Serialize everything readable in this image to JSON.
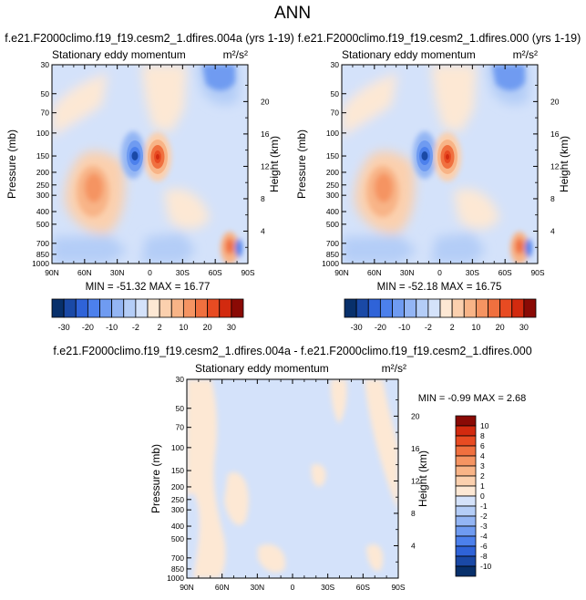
{
  "figure": {
    "title": "ANN",
    "colors": {
      "neg": [
        "#08306b",
        "#1a49a6",
        "#2f63d8",
        "#4c80ec",
        "#6f9bf1",
        "#93b5f4",
        "#b4cdf7",
        "#d4e2fa"
      ],
      "pos": [
        "#fde8d4",
        "#fbd0ae",
        "#f8b487",
        "#f59462",
        "#f0703f",
        "#e84b22",
        "#d22a0f",
        "#8a0a05"
      ]
    }
  },
  "chart_data": [
    {
      "type": "heatmap",
      "panel_title": "f.e21.F2000climo.f19_f19.cesm2_1.dfires.004a (yrs 1-19)",
      "subtitle": "Stationary eddy momentum",
      "units": "m²/s²",
      "xlabel": "",
      "ylabel": "Pressure (mb)",
      "ylabel_right": "Height (km)",
      "x_ticks": [
        "90N",
        "60N",
        "30N",
        "0",
        "30S",
        "60S",
        "90S"
      ],
      "y_ticks": [
        "30",
        "50",
        "70",
        "100",
        "150",
        "200",
        "250",
        "300",
        "400",
        "500",
        "700",
        "850",
        "1000"
      ],
      "height_ticks": [
        "20",
        "16",
        "12",
        "8",
        "4"
      ],
      "stats": "MIN = -51.32   MAX = 16.77",
      "min": -51.32,
      "max": 16.77,
      "levels": [
        "-30",
        "-20",
        "-10",
        "-2",
        "2",
        "10",
        "20",
        "30"
      ],
      "features": [
        {
          "lat": -8,
          "p": 150,
          "value": 16.77
        },
        {
          "lat": 5,
          "p": 150,
          "value": -51.32
        },
        {
          "lat": 38,
          "p": 250,
          "value": 12
        },
        {
          "lat": -35,
          "p": 220,
          "value": 6
        },
        {
          "lat": -80,
          "p": 750,
          "value": 15
        },
        {
          "lat": -72,
          "p": 45,
          "value": -12
        },
        {
          "lat": 15,
          "p": 400,
          "value": -4
        }
      ]
    },
    {
      "type": "heatmap",
      "panel_title": "f.e21.F2000climo.f19_f19.cesm2_1.dfires.000 (yrs 1-19)",
      "subtitle": "Stationary eddy momentum",
      "units": "m²/s²",
      "xlabel": "",
      "ylabel": "Pressure (mb)",
      "ylabel_right": "Height (km)",
      "x_ticks": [
        "90N",
        "60N",
        "30N",
        "0",
        "30S",
        "60S",
        "90S"
      ],
      "y_ticks": [
        "30",
        "50",
        "70",
        "100",
        "150",
        "200",
        "250",
        "300",
        "400",
        "500",
        "700",
        "850",
        "1000"
      ],
      "height_ticks": [
        "20",
        "16",
        "12",
        "8",
        "4"
      ],
      "stats": "MIN = -52.18   MAX = 16.75",
      "min": -52.18,
      "max": 16.75,
      "levels": [
        "-30",
        "-20",
        "-10",
        "-2",
        "2",
        "10",
        "20",
        "30"
      ],
      "features": [
        {
          "lat": -8,
          "p": 150,
          "value": 16.75
        },
        {
          "lat": 5,
          "p": 150,
          "value": -52.18
        },
        {
          "lat": 38,
          "p": 250,
          "value": 12
        },
        {
          "lat": -35,
          "p": 220,
          "value": 6
        },
        {
          "lat": -80,
          "p": 750,
          "value": 15
        },
        {
          "lat": -72,
          "p": 45,
          "value": -12
        },
        {
          "lat": 15,
          "p": 400,
          "value": -4
        }
      ]
    },
    {
      "type": "heatmap",
      "panel_title": "f.e21.F2000climo.f19_f19.cesm2_1.dfires.004a - f.e21.F2000climo.f19_f19.cesm2_1.dfires.000",
      "subtitle": "Stationary eddy momentum",
      "units": "m²/s²",
      "xlabel": "",
      "ylabel": "Pressure (mb)",
      "ylabel_right": "Height (km)",
      "x_ticks": [
        "90N",
        "60N",
        "30N",
        "0",
        "30S",
        "60S",
        "90S"
      ],
      "y_ticks": [
        "30",
        "50",
        "70",
        "100",
        "150",
        "200",
        "250",
        "300",
        "400",
        "500",
        "700",
        "850",
        "1000"
      ],
      "height_ticks": [
        "20",
        "16",
        "12",
        "8",
        "4"
      ],
      "stats": "MIN = -0.99   MAX =  2.68",
      "min": -0.99,
      "max": 2.68,
      "levels": [
        "10",
        "8",
        "6",
        "4",
        "3",
        "2",
        "1",
        "0",
        "-1",
        "-2",
        "-3",
        "-4",
        "-6",
        "-8",
        "-10"
      ],
      "features": [
        {
          "lat": 70,
          "p": 60,
          "value": 1
        },
        {
          "lat": 30,
          "p": 500,
          "value": 1
        },
        {
          "lat": -40,
          "p": 60,
          "value": 1
        },
        {
          "lat": -10,
          "p": 400,
          "value": -1
        }
      ]
    }
  ]
}
